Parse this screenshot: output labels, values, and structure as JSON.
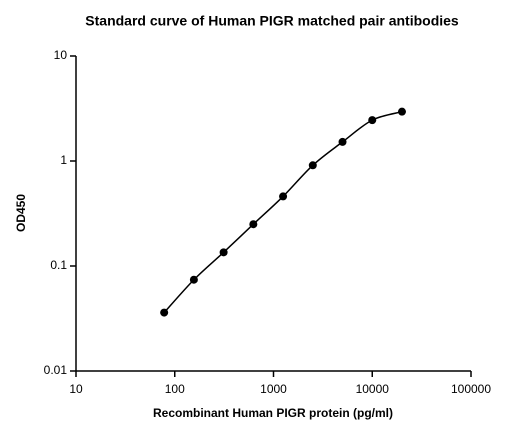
{
  "chart_data": {
    "type": "scatter",
    "title": "Standard curve of Human PIGR matched pair antibodies",
    "x_label": "Recombinant Human PIGR protein (pg/ml)",
    "y_label": "OD450",
    "x": [
      78.125,
      156.25,
      312.5,
      625,
      1250,
      2500,
      5000,
      10000,
      20000
    ],
    "values": [
      0.036,
      0.074,
      0.135,
      0.25,
      0.46,
      0.91,
      1.52,
      2.45,
      2.95
    ],
    "color": "#000000",
    "fit_line": true,
    "x_log": true,
    "y_log": true,
    "xlim": [
      10,
      100000
    ],
    "xticks": [
      10,
      100,
      1000,
      10000,
      100000
    ],
    "ylim": [
      0.01,
      10
    ],
    "yticks": [
      0.01,
      0.1,
      1,
      10
    ]
  }
}
